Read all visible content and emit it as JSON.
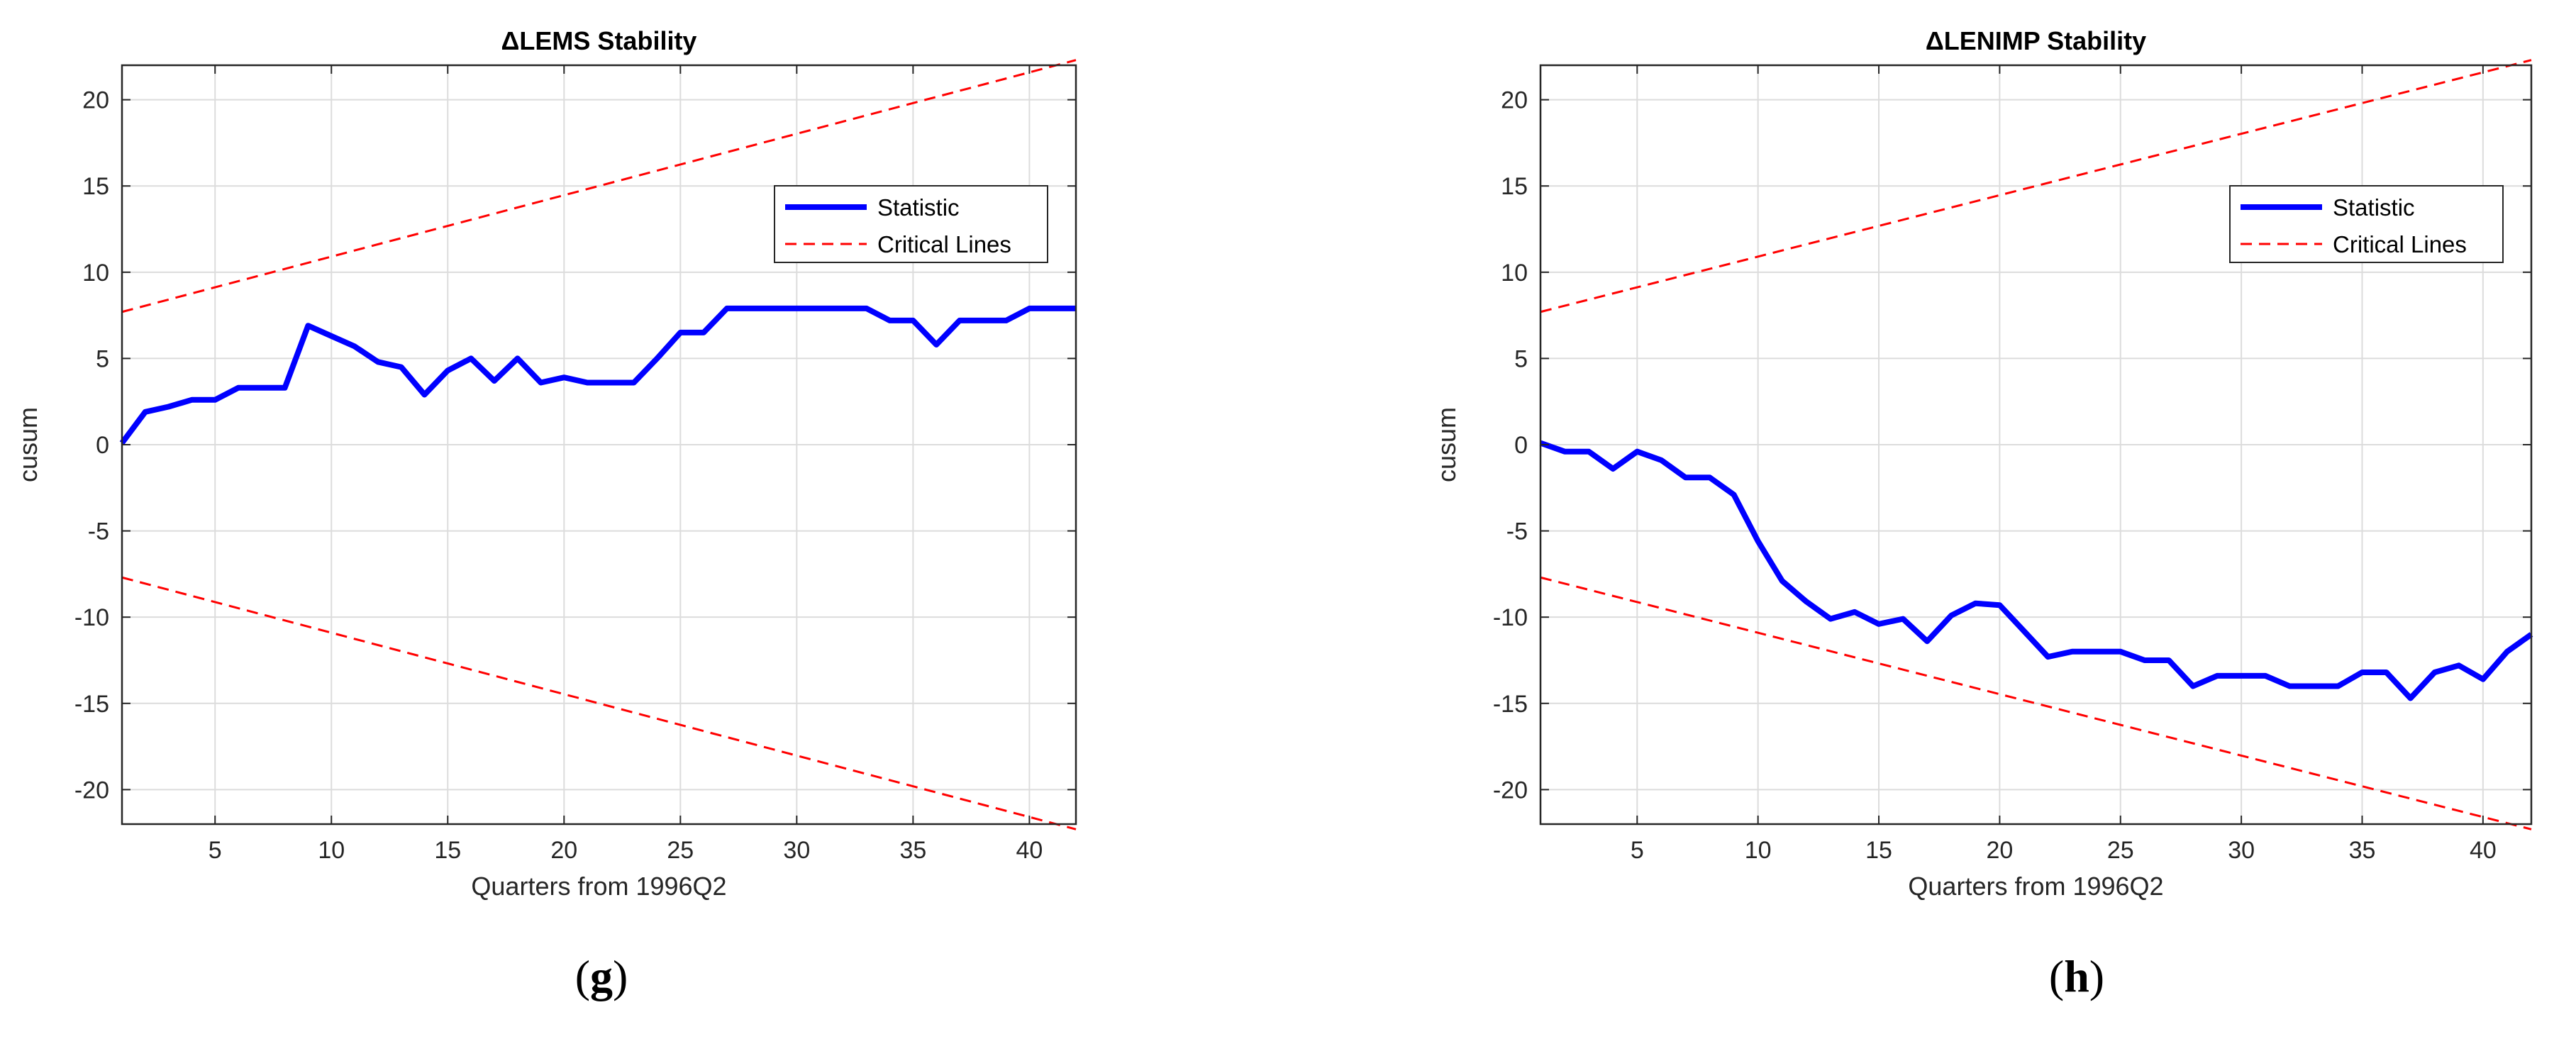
{
  "chart_data": [
    {
      "type": "line",
      "panel_label": "g",
      "title": "ΔLEMS Stability",
      "xlabel": "Quarters from 1996Q2",
      "ylabel": "cusum",
      "xlim": [
        1,
        42
      ],
      "ylim": [
        -22,
        22
      ],
      "xticks": [
        5,
        10,
        15,
        20,
        25,
        30,
        35,
        40
      ],
      "yticks": [
        -20,
        -15,
        -10,
        -5,
        0,
        5,
        10,
        15,
        20
      ],
      "grid": true,
      "legend_position": "top-right",
      "series": [
        {
          "name": "Statistic",
          "style": "solid",
          "color": "#0000ff",
          "x": [
            1,
            2,
            3,
            4,
            5,
            6,
            7,
            8,
            9,
            10,
            11,
            12,
            13,
            14,
            15,
            16,
            17,
            18,
            19,
            20,
            21,
            22,
            23,
            24,
            25,
            26,
            27,
            28,
            29,
            30,
            31,
            32,
            33,
            34,
            35,
            36,
            37,
            38,
            39,
            40,
            41,
            42
          ],
          "values": [
            0.1,
            1.9,
            2.2,
            2.6,
            2.6,
            3.3,
            3.3,
            3.3,
            6.9,
            6.3,
            5.7,
            4.8,
            4.5,
            2.9,
            4.3,
            5.0,
            3.7,
            5.0,
            3.6,
            3.9,
            3.6,
            3.6,
            3.6,
            5.0,
            6.5,
            6.5,
            7.9,
            7.9,
            7.9,
            7.9,
            7.9,
            7.9,
            7.9,
            7.2,
            7.2,
            5.8,
            7.2,
            7.2,
            7.2,
            7.9,
            7.9,
            7.9
          ]
        },
        {
          "name": "Critical Lines",
          "style": "dashed",
          "color": "#ff0000",
          "x": [
            1,
            42
          ],
          "upper": [
            7.7,
            22.3
          ],
          "lower": [
            -7.7,
            -22.3
          ]
        }
      ]
    },
    {
      "type": "line",
      "panel_label": "h",
      "title": "ΔLENIMP Stability",
      "xlabel": "Quarters from 1996Q2",
      "ylabel": "cusum",
      "xlim": [
        1,
        42
      ],
      "ylim": [
        -22,
        22
      ],
      "xticks": [
        5,
        10,
        15,
        20,
        25,
        30,
        35,
        40
      ],
      "yticks": [
        -20,
        -15,
        -10,
        -5,
        0,
        5,
        10,
        15,
        20
      ],
      "grid": true,
      "legend_position": "top-right",
      "series": [
        {
          "name": "Statistic",
          "style": "solid",
          "color": "#0000ff",
          "x": [
            1,
            2,
            3,
            4,
            5,
            6,
            7,
            8,
            9,
            10,
            11,
            12,
            13,
            14,
            15,
            16,
            17,
            18,
            19,
            20,
            21,
            22,
            23,
            24,
            25,
            26,
            27,
            28,
            29,
            30,
            31,
            32,
            33,
            34,
            35,
            36,
            37,
            38,
            39,
            40,
            41,
            42
          ],
          "values": [
            0.1,
            -0.4,
            -0.4,
            -1.4,
            -0.4,
            -0.9,
            -1.9,
            -1.9,
            -2.9,
            -5.6,
            -7.9,
            -9.1,
            -10.1,
            -9.7,
            -10.4,
            -10.1,
            -11.4,
            -9.9,
            -9.2,
            -9.3,
            -10.8,
            -12.3,
            -12.0,
            -12.0,
            -12.0,
            -12.5,
            -12.5,
            -14.0,
            -13.4,
            -13.4,
            -13.4,
            -14.0,
            -14.0,
            -14.0,
            -13.2,
            -13.2,
            -14.7,
            -13.2,
            -12.8,
            -13.6,
            -12.0,
            -11.0
          ]
        },
        {
          "name": "Critical Lines",
          "style": "dashed",
          "color": "#ff0000",
          "x": [
            1,
            42
          ],
          "upper": [
            7.7,
            22.3
          ],
          "lower": [
            -7.7,
            -22.3
          ]
        }
      ]
    }
  ]
}
